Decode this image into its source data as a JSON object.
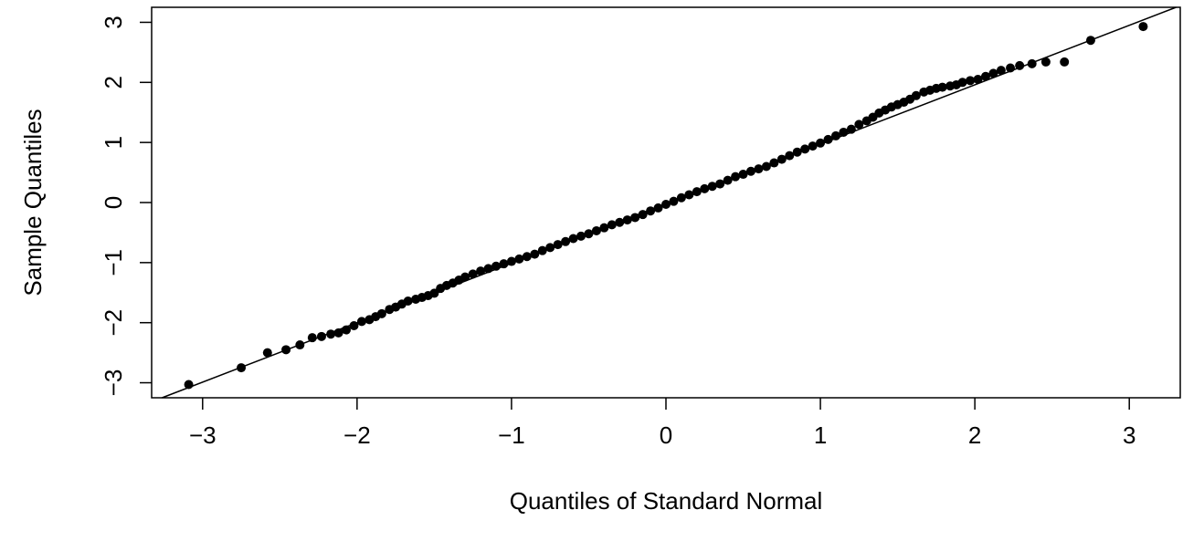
{
  "chart_data": {
    "type": "scatter",
    "title": "",
    "xlabel": "Quantiles of Standard Normal",
    "ylabel": "Sample Quantiles",
    "xlim": [
      -3.33,
      3.33
    ],
    "ylim": [
      -3.25,
      3.25
    ],
    "x_ticks": [
      -3,
      -2,
      -1,
      0,
      1,
      2,
      3
    ],
    "y_ticks": [
      -3,
      -2,
      -1,
      0,
      1,
      2,
      3
    ],
    "x_tick_labels": [
      "−3",
      "−2",
      "−1",
      "0",
      "1",
      "2",
      "3"
    ],
    "y_tick_labels": [
      "−3",
      "−2",
      "−1",
      "0",
      "1",
      "2",
      "3"
    ],
    "grid": false,
    "legend": "none",
    "point_color": "#000000",
    "line_color": "#000000",
    "reference_line": {
      "intercept": -0.02,
      "slope": 0.99
    },
    "series": [
      {
        "type": "scatter",
        "x": [
          -3.09,
          -2.75,
          -2.58,
          -2.46,
          -2.37,
          -2.29,
          -2.23,
          -2.17,
          -2.12,
          -2.07,
          -2.02,
          -1.97,
          -1.92,
          -1.88,
          -1.84,
          -1.79,
          -1.75,
          -1.71,
          -1.67,
          -1.62,
          -1.58,
          -1.54,
          -1.5,
          -1.46,
          -1.42,
          -1.38,
          -1.34,
          -1.3,
          -1.25,
          -1.2,
          -1.15,
          -1.1,
          -1.05,
          -1.0,
          -0.95,
          -0.9,
          -0.85,
          -0.8,
          -0.75,
          -0.7,
          -0.65,
          -0.6,
          -0.55,
          -0.5,
          -0.45,
          -0.4,
          -0.35,
          -0.3,
          -0.25,
          -0.2,
          -0.15,
          -0.1,
          -0.05,
          0.0,
          0.05,
          0.1,
          0.15,
          0.2,
          0.25,
          0.3,
          0.35,
          0.4,
          0.45,
          0.5,
          0.55,
          0.6,
          0.65,
          0.7,
          0.75,
          0.8,
          0.85,
          0.9,
          0.95,
          1.0,
          1.05,
          1.1,
          1.15,
          1.2,
          1.25,
          1.3,
          1.34,
          1.38,
          1.42,
          1.46,
          1.5,
          1.54,
          1.58,
          1.62,
          1.67,
          1.71,
          1.75,
          1.79,
          1.84,
          1.88,
          1.92,
          1.97,
          2.02,
          2.07,
          2.12,
          2.17,
          2.23,
          2.29,
          2.37,
          2.46,
          2.58,
          2.75,
          3.09
        ],
        "y": [
          -3.03,
          -2.75,
          -2.5,
          -2.45,
          -2.37,
          -2.25,
          -2.23,
          -2.19,
          -2.17,
          -2.12,
          -2.05,
          -1.98,
          -1.95,
          -1.9,
          -1.85,
          -1.78,
          -1.74,
          -1.69,
          -1.64,
          -1.61,
          -1.58,
          -1.55,
          -1.51,
          -1.43,
          -1.38,
          -1.34,
          -1.29,
          -1.24,
          -1.19,
          -1.14,
          -1.1,
          -1.06,
          -1.02,
          -0.98,
          -0.94,
          -0.9,
          -0.86,
          -0.8,
          -0.75,
          -0.7,
          -0.65,
          -0.6,
          -0.56,
          -0.52,
          -0.47,
          -0.42,
          -0.37,
          -0.33,
          -0.29,
          -0.25,
          -0.2,
          -0.14,
          -0.09,
          -0.03,
          0.02,
          0.08,
          0.13,
          0.18,
          0.23,
          0.27,
          0.31,
          0.37,
          0.43,
          0.47,
          0.52,
          0.56,
          0.6,
          0.66,
          0.72,
          0.78,
          0.84,
          0.89,
          0.94,
          0.99,
          1.05,
          1.11,
          1.17,
          1.22,
          1.3,
          1.36,
          1.42,
          1.49,
          1.54,
          1.59,
          1.63,
          1.67,
          1.72,
          1.78,
          1.84,
          1.87,
          1.9,
          1.92,
          1.94,
          1.96,
          2.0,
          2.03,
          2.05,
          2.1,
          2.15,
          2.2,
          2.24,
          2.28,
          2.31,
          2.34,
          2.34,
          2.7,
          2.93
        ]
      }
    ]
  }
}
